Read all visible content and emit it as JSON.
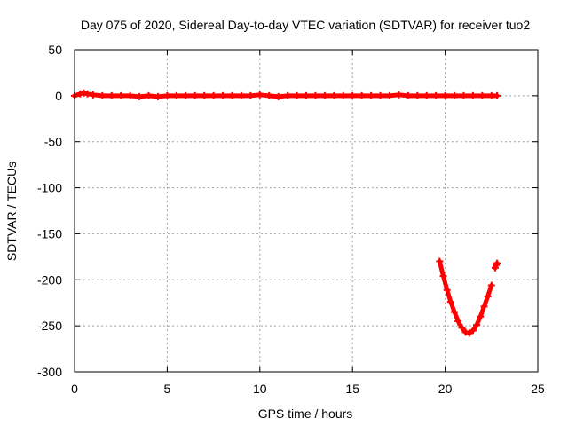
{
  "chart_data": {
    "type": "scatter",
    "title": "Day 075 of 2020, Sidereal Day-to-day VTEC variation (SDTVAR) for receiver tuo2",
    "xlabel": "GPS time / hours",
    "ylabel": "SDTVAR / TECUs",
    "xlim": [
      0,
      25
    ],
    "ylim": [
      -300,
      50
    ],
    "xticks": [
      "0",
      "5",
      "10",
      "15",
      "20",
      "25"
    ],
    "yticks": [
      "50",
      "0",
      "-50",
      "-100",
      "-150",
      "-200",
      "-250",
      "-300"
    ],
    "grid": true,
    "marker": "plus",
    "series": [
      {
        "color": "#ff0000",
        "x": [
          0.0,
          0.3,
          0.5,
          0.7,
          1.0,
          1.5,
          2.0,
          2.5,
          3.0,
          3.5,
          4.0,
          4.5,
          5.0,
          5.5,
          6.0,
          6.5,
          7.0,
          7.5,
          8.0,
          8.5,
          9.0,
          9.5,
          10.0,
          10.5,
          11.0,
          11.5,
          12.0,
          12.5,
          13.0,
          13.5,
          14.0,
          14.5,
          15.0,
          15.5,
          16.0,
          16.5,
          17.0,
          17.5,
          18.0,
          18.5,
          19.0,
          19.5,
          20.0,
          20.5,
          21.0,
          21.5,
          22.0,
          22.5,
          22.8
        ],
        "y": [
          0,
          2,
          3,
          2,
          1,
          0,
          0,
          0,
          0,
          -1,
          0,
          -1,
          0,
          0,
          0,
          0,
          0,
          0,
          0,
          0,
          0,
          0,
          1,
          0,
          -1,
          0,
          0,
          0,
          0,
          0,
          0,
          0,
          0,
          0,
          0,
          0,
          0,
          1,
          0,
          0,
          0,
          0,
          0,
          0,
          0,
          0,
          0,
          0,
          0
        ]
      },
      {
        "color": "#ff0000",
        "x": [
          19.7,
          19.9,
          20.1,
          20.3,
          20.5,
          20.7,
          20.9,
          21.1,
          21.3,
          21.5,
          21.7,
          21.9,
          22.1,
          22.3,
          22.5
        ],
        "y": [
          -180,
          -196,
          -211,
          -224,
          -235,
          -245,
          -252,
          -257,
          -258,
          -255,
          -249,
          -240,
          -229,
          -218,
          -206
        ]
      },
      {
        "color": "#ff0000",
        "x": [
          22.7,
          22.75,
          22.8
        ],
        "y": [
          -187,
          -184,
          -182
        ]
      }
    ]
  }
}
